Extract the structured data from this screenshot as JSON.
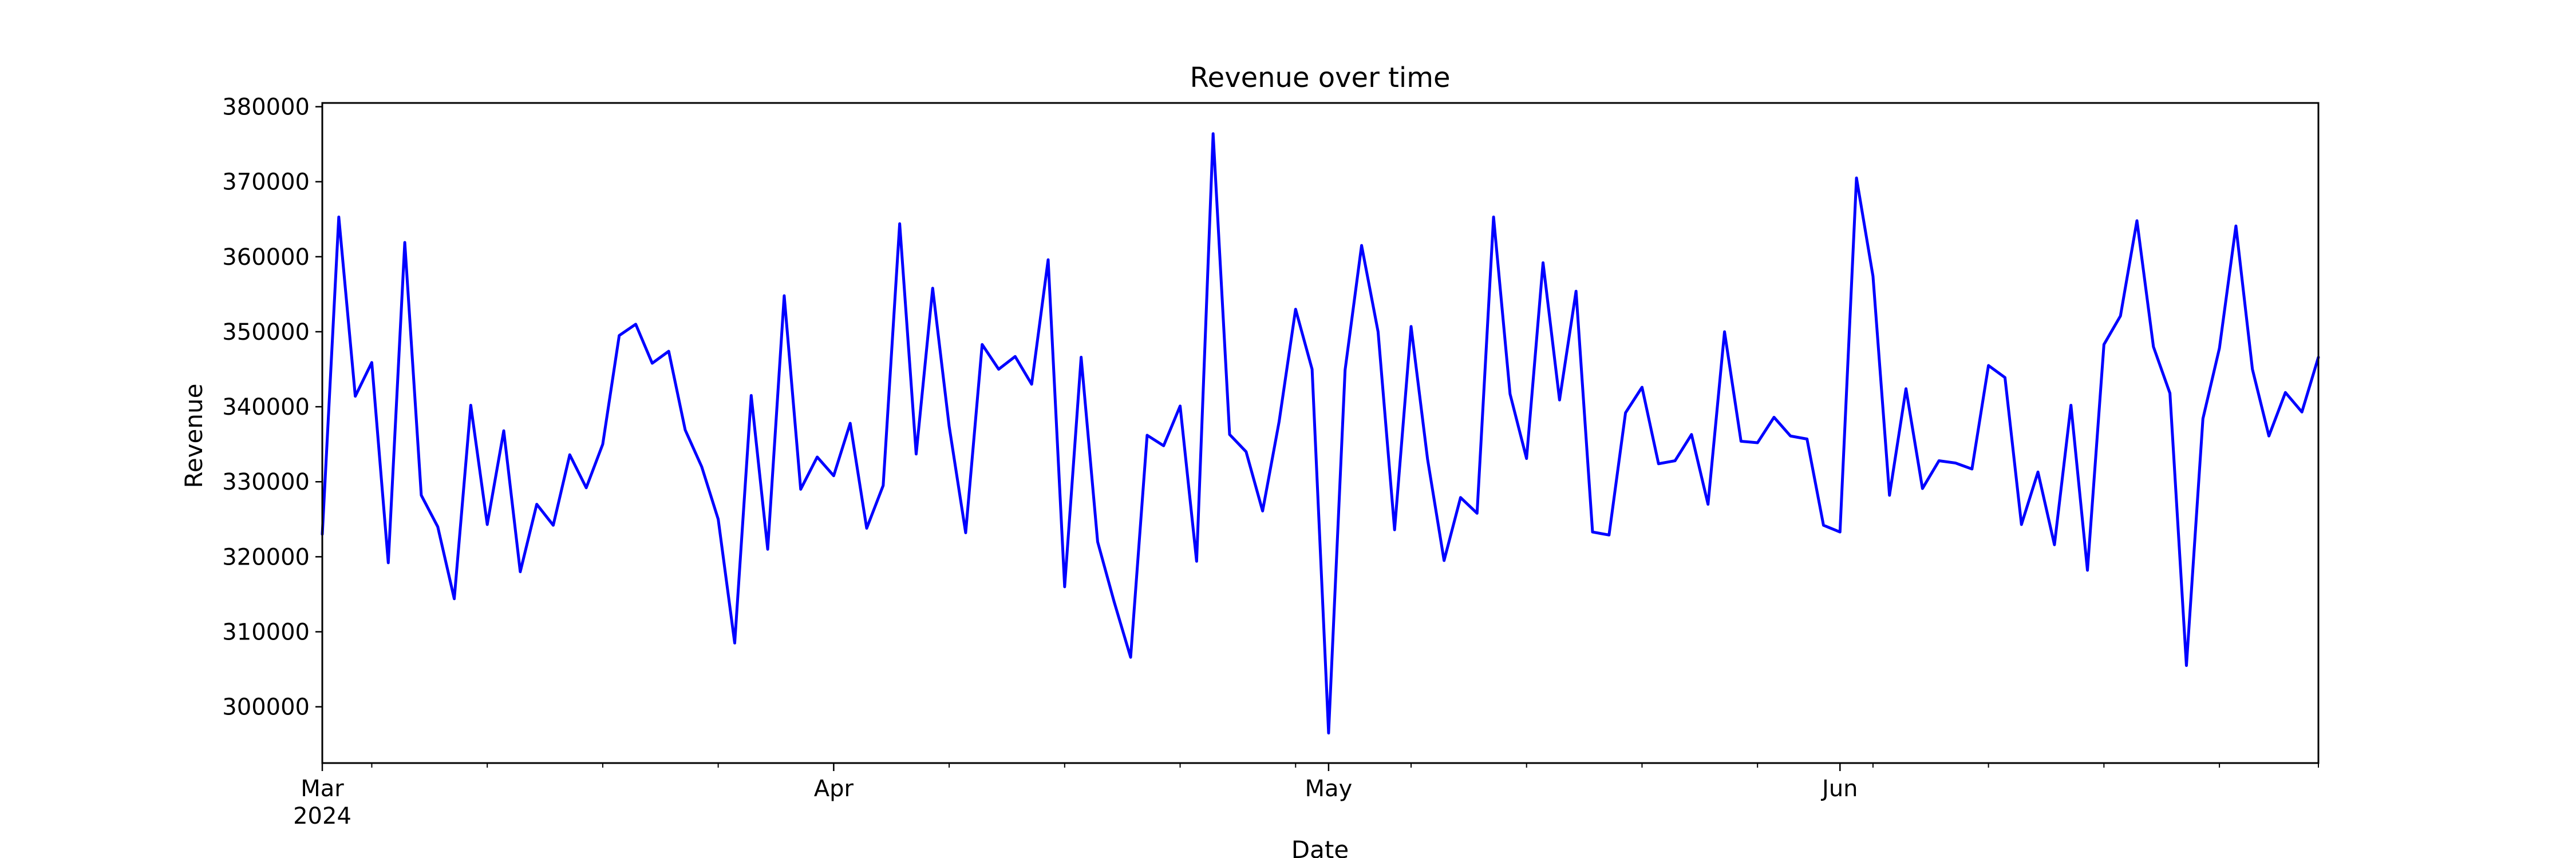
{
  "chart_data": {
    "type": "line",
    "title": "Revenue over time",
    "xlabel": "Date",
    "ylabel": "Revenue",
    "x_start": "2024-03-01",
    "x_end": "2024-06-30",
    "xlim": [
      "2024-03-01",
      "2024-06-30"
    ],
    "ylim": [
      292500,
      380500
    ],
    "grid": false,
    "legend": "none",
    "series": [
      {
        "color": "#0000ff",
        "x": [
          "2024-03-01",
          "2024-03-02",
          "2024-03-03",
          "2024-03-04",
          "2024-03-05",
          "2024-03-06",
          "2024-03-07",
          "2024-03-08",
          "2024-03-09",
          "2024-03-10",
          "2024-03-11",
          "2024-03-12",
          "2024-03-13",
          "2024-03-14",
          "2024-03-15",
          "2024-03-16",
          "2024-03-17",
          "2024-03-18",
          "2024-03-19",
          "2024-03-20",
          "2024-03-21",
          "2024-03-22",
          "2024-03-23",
          "2024-03-24",
          "2024-03-25",
          "2024-03-26",
          "2024-03-27",
          "2024-03-28",
          "2024-03-29",
          "2024-03-30",
          "2024-03-31",
          "2024-04-01",
          "2024-04-02",
          "2024-04-03",
          "2024-04-04",
          "2024-04-05",
          "2024-04-06",
          "2024-04-07",
          "2024-04-08",
          "2024-04-09",
          "2024-04-10",
          "2024-04-11",
          "2024-04-12",
          "2024-04-13",
          "2024-04-14",
          "2024-04-15",
          "2024-04-16",
          "2024-04-17",
          "2024-04-18",
          "2024-04-19",
          "2024-04-20",
          "2024-04-21",
          "2024-04-22",
          "2024-04-23",
          "2024-04-24",
          "2024-04-25",
          "2024-04-26",
          "2024-04-27",
          "2024-04-28",
          "2024-04-29",
          "2024-04-30",
          "2024-05-01",
          "2024-05-02",
          "2024-05-03",
          "2024-05-04",
          "2024-05-05",
          "2024-05-06",
          "2024-05-07",
          "2024-05-08",
          "2024-05-09",
          "2024-05-10",
          "2024-05-11",
          "2024-05-12",
          "2024-05-13",
          "2024-05-14",
          "2024-05-15",
          "2024-05-16",
          "2024-05-17",
          "2024-05-18",
          "2024-05-19",
          "2024-05-20",
          "2024-05-21",
          "2024-05-22",
          "2024-05-23",
          "2024-05-24",
          "2024-05-25",
          "2024-05-26",
          "2024-05-27",
          "2024-05-28",
          "2024-05-29",
          "2024-05-30",
          "2024-05-31",
          "2024-06-01",
          "2024-06-02",
          "2024-06-03",
          "2024-06-04",
          "2024-06-05",
          "2024-06-06",
          "2024-06-07",
          "2024-06-08",
          "2024-06-09",
          "2024-06-10",
          "2024-06-11",
          "2024-06-12",
          "2024-06-13",
          "2024-06-14",
          "2024-06-15",
          "2024-06-16",
          "2024-06-17",
          "2024-06-18",
          "2024-06-19",
          "2024-06-20",
          "2024-06-21",
          "2024-06-22",
          "2024-06-23",
          "2024-06-24",
          "2024-06-25",
          "2024-06-26",
          "2024-06-27",
          "2024-06-28",
          "2024-06-29",
          "2024-06-30"
        ],
        "values": [
          323000,
          365300,
          341400,
          345900,
          319200,
          361900,
          328200,
          324000,
          314400,
          340200,
          324300,
          336800,
          318000,
          327000,
          324200,
          333600,
          329200,
          335000,
          349500,
          351000,
          345800,
          347400,
          336900,
          332000,
          325000,
          308500,
          341500,
          321000,
          354800,
          329000,
          333300,
          330800,
          337800,
          323800,
          329500,
          364400,
          333700,
          355800,
          337400,
          323200,
          348300,
          345000,
          346700,
          343000,
          359600,
          316000,
          346600,
          322000,
          314000,
          306600,
          336200,
          334800,
          340100,
          319400,
          376400,
          336300,
          334000,
          326100,
          338000,
          353000,
          345000,
          296500,
          344900,
          361500,
          350000,
          323600,
          350700,
          333000,
          319500,
          327900,
          325800,
          365300,
          341700,
          333100,
          359200,
          340900,
          355400,
          323300,
          322900,
          339200,
          342600,
          332400,
          332800,
          336300,
          327000,
          350000,
          335400,
          335200,
          338600,
          336100,
          335700,
          324200,
          323300,
          370500,
          357400,
          328200,
          342400,
          329100,
          332800,
          332500,
          331700,
          345500,
          343900,
          324300,
          331300,
          321600,
          340200,
          318200,
          348300,
          352100,
          364800,
          348000,
          341800,
          305500,
          338400,
          347800,
          364100,
          345000,
          336100,
          341900,
          339300,
          346600
        ]
      }
    ],
    "yticks": [
      "300000",
      "310000",
      "320000",
      "330000",
      "340000",
      "350000",
      "360000",
      "370000",
      "380000"
    ],
    "xticks": [
      {
        "date": "2024-03-01",
        "label": "Mar",
        "sublabel": "2024"
      },
      {
        "date": "2024-04-01",
        "label": "Apr",
        "sublabel": ""
      },
      {
        "date": "2024-05-01",
        "label": "May",
        "sublabel": ""
      },
      {
        "date": "2024-06-01",
        "label": "Jun",
        "sublabel": ""
      }
    ],
    "minor_xticks": [
      "2024-03-04",
      "2024-03-11",
      "2024-03-18",
      "2024-03-25",
      "2024-04-08",
      "2024-04-15",
      "2024-04-22",
      "2024-04-29",
      "2024-05-06",
      "2024-05-13",
      "2024-05-20",
      "2024-05-27",
      "2024-06-03",
      "2024-06-10",
      "2024-06-17",
      "2024-06-24",
      "2024-06-30"
    ]
  }
}
